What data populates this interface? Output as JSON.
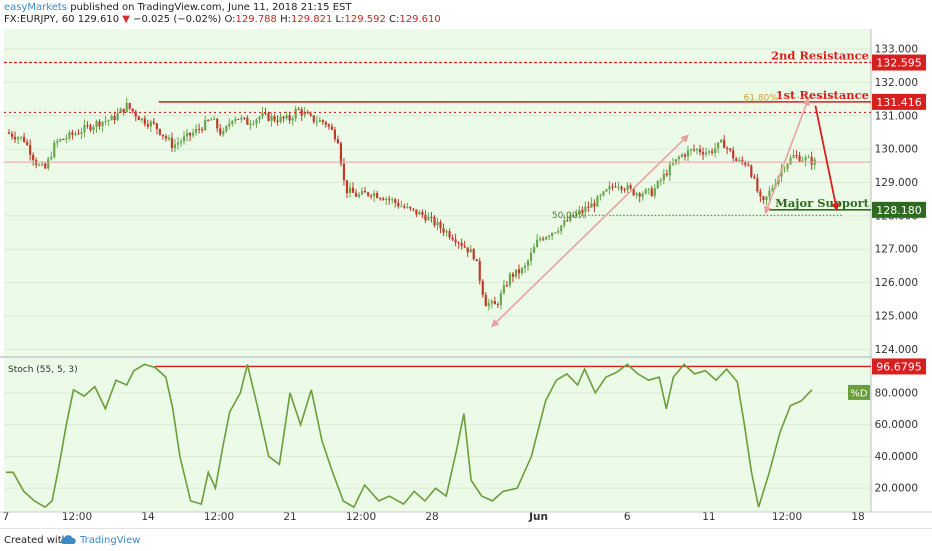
{
  "header": {
    "publisher": "easyMarkets",
    "published_text": "published on TradingView.com, June 11, 2018 21:15 EST",
    "symbol": "FX:EURJPY, 60",
    "last": "129.610",
    "arrow": "▼",
    "change": "−0.025 (−0.02%)",
    "open_label": "O:",
    "open": "129.788",
    "high_label": "H:",
    "high": "129.821",
    "low_label": "L:",
    "low": "129.592",
    "close_label": "C:",
    "close": "129.610"
  },
  "footer": {
    "created_with": "Created with",
    "brand": "TradingView"
  },
  "colors": {
    "panel_bg": "#ecfbe8",
    "bull": "#6aa64e",
    "bear": "#c0392b",
    "resistance": "#d81f1f",
    "support": "#2e6b1e",
    "arrow_pink": "#e9a0a0",
    "stoch": "#6a9e3a",
    "fib_61": "#c8a030",
    "fib_50": "#4a7a32"
  },
  "chart_data": [
    {
      "type": "candlestick",
      "title": "FX:EURJPY, 60",
      "ylim": [
        123.8,
        133.6
      ],
      "x_tick_labels": [
        "7",
        "12:00",
        "14",
        "12:00",
        "21",
        "12:00",
        "28",
        "Jun",
        "6",
        "11",
        "12:00",
        "18"
      ],
      "y_tick_labels": [
        "124.000",
        "125.000",
        "126.000",
        "127.000",
        "128.000",
        "129.000",
        "130.000",
        "131.000",
        "132.000",
        "133.000"
      ],
      "y_ticks": [
        124,
        125,
        126,
        127,
        128,
        129,
        130,
        131,
        132,
        133
      ],
      "price_path": [
        [
          0,
          130.5
        ],
        [
          0.05,
          130.3
        ],
        [
          0.09,
          129.5
        ],
        [
          0.11,
          129.4
        ],
        [
          0.14,
          130.2
        ],
        [
          0.2,
          130.5
        ],
        [
          0.26,
          130.8
        ],
        [
          0.3,
          130.9
        ],
        [
          0.34,
          131.3
        ],
        [
          0.38,
          130.9
        ],
        [
          0.42,
          130.7
        ],
        [
          0.47,
          130.1
        ],
        [
          0.53,
          130.5
        ],
        [
          0.58,
          130.9
        ],
        [
          0.61,
          130.4
        ],
        [
          0.64,
          131.0
        ],
        [
          0.68,
          130.8
        ],
        [
          0.72,
          131.0
        ],
        [
          0.76,
          130.9
        ],
        [
          0.8,
          130.9
        ],
        [
          0.82,
          131.2
        ],
        [
          0.86,
          130.9
        ],
        [
          0.9,
          130.8
        ],
        [
          0.935,
          130.3
        ],
        [
          0.955,
          128.8
        ],
        [
          0.99,
          128.6
        ],
        [
          1.03,
          128.7
        ],
        [
          1.08,
          128.5
        ],
        [
          1.13,
          128.2
        ],
        [
          1.18,
          128.0
        ],
        [
          1.23,
          127.6
        ],
        [
          1.27,
          127.3
        ],
        [
          1.32,
          126.8
        ],
        [
          1.35,
          125.4
        ],
        [
          1.38,
          125.3
        ],
        [
          1.42,
          126.2
        ],
        [
          1.46,
          126.4
        ],
        [
          1.5,
          127.3
        ],
        [
          1.55,
          127.6
        ],
        [
          1.6,
          128.0
        ],
        [
          1.66,
          128.4
        ],
        [
          1.72,
          129.0
        ],
        [
          1.77,
          128.7
        ],
        [
          1.82,
          128.7
        ],
        [
          1.86,
          129.3
        ],
        [
          1.9,
          129.8
        ],
        [
          1.94,
          130.0
        ],
        [
          1.98,
          129.9
        ],
        [
          2.02,
          130.2
        ],
        [
          2.06,
          129.6
        ],
        [
          2.09,
          129.6
        ],
        [
          2.13,
          128.3
        ],
        [
          2.16,
          128.9
        ],
        [
          2.19,
          129.5
        ],
        [
          2.22,
          129.8
        ],
        [
          2.25,
          129.7
        ],
        [
          2.28,
          129.6
        ]
      ],
      "horizontal_lines": [
        {
          "label": "2nd Resistance",
          "price": "132.595",
          "value": 132.595,
          "style": "dashed"
        },
        {
          "label": "1st Resistance",
          "price": "131.416",
          "value": 131.416,
          "style": "solid"
        },
        {
          "label": "",
          "price": "",
          "value": 131.1,
          "style": "dotted"
        },
        {
          "label": "Major Support",
          "price": "128.180",
          "value": 128.18,
          "style": "solid"
        }
      ],
      "fibonacci": [
        {
          "label": "61.80%",
          "value": 131.55,
          "x_range": [
            2.18,
            2.36
          ]
        },
        {
          "label": "50.00%",
          "value": 128.02,
          "x_range": [
            1.64,
            2.36
          ]
        }
      ],
      "current_price_line": 129.61,
      "arrows": [
        {
          "from": [
            1.37,
            124.7
          ],
          "to": [
            1.92,
            130.4
          ],
          "style": "double"
        },
        {
          "from": [
            2.14,
            128.1
          ],
          "to": [
            2.26,
            131.5
          ],
          "style": "double"
        },
        {
          "from": [
            2.28,
            131.3
          ],
          "to": [
            2.34,
            128.2
          ],
          "style": "single"
        }
      ]
    },
    {
      "type": "line",
      "title": "Stoch (55, 5, 3)",
      "series": [
        {
          "name": "%D",
          "last": "80.0000"
        }
      ],
      "ylim": [
        5,
        102
      ],
      "y_tick_labels": [
        "20.0000",
        "40.0000",
        "60.0000",
        "80.0000"
      ],
      "y_ticks": [
        20,
        40,
        60,
        80
      ],
      "level_label": "96.6795",
      "level": 96.6795,
      "values": [
        [
          0,
          30
        ],
        [
          0.02,
          30
        ],
        [
          0.05,
          18
        ],
        [
          0.08,
          12
        ],
        [
          0.11,
          8
        ],
        [
          0.13,
          12
        ],
        [
          0.15,
          35
        ],
        [
          0.17,
          60
        ],
        [
          0.19,
          82
        ],
        [
          0.22,
          78
        ],
        [
          0.25,
          84
        ],
        [
          0.28,
          70
        ],
        [
          0.31,
          88
        ],
        [
          0.34,
          85
        ],
        [
          0.36,
          94
        ],
        [
          0.39,
          98
        ],
        [
          0.42,
          96
        ],
        [
          0.45,
          90
        ],
        [
          0.47,
          70
        ],
        [
          0.49,
          40
        ],
        [
          0.52,
          12
        ],
        [
          0.55,
          10
        ],
        [
          0.57,
          30
        ],
        [
          0.59,
          20
        ],
        [
          0.61,
          45
        ],
        [
          0.63,
          68
        ],
        [
          0.66,
          80
        ],
        [
          0.68,
          98
        ],
        [
          0.71,
          70
        ],
        [
          0.74,
          40
        ],
        [
          0.77,
          35
        ],
        [
          0.8,
          80
        ],
        [
          0.83,
          60
        ],
        [
          0.86,
          82
        ],
        [
          0.89,
          50
        ],
        [
          0.92,
          30
        ],
        [
          0.95,
          12
        ],
        [
          0.98,
          8
        ],
        [
          1.01,
          22
        ],
        [
          1.05,
          12
        ],
        [
          1.08,
          15
        ],
        [
          1.12,
          10
        ],
        [
          1.15,
          18
        ],
        [
          1.18,
          12
        ],
        [
          1.21,
          20
        ],
        [
          1.24,
          15
        ],
        [
          1.27,
          45
        ],
        [
          1.29,
          67
        ],
        [
          1.31,
          25
        ],
        [
          1.34,
          15
        ],
        [
          1.37,
          12
        ],
        [
          1.4,
          18
        ],
        [
          1.44,
          20
        ],
        [
          1.48,
          40
        ],
        [
          1.52,
          75
        ],
        [
          1.55,
          88
        ],
        [
          1.58,
          92
        ],
        [
          1.61,
          85
        ],
        [
          1.63,
          95
        ],
        [
          1.66,
          80
        ],
        [
          1.69,
          90
        ],
        [
          1.72,
          93
        ],
        [
          1.75,
          98
        ],
        [
          1.78,
          92
        ],
        [
          1.81,
          88
        ],
        [
          1.84,
          90
        ],
        [
          1.86,
          70
        ],
        [
          1.88,
          90
        ],
        [
          1.91,
          98
        ],
        [
          1.94,
          92
        ],
        [
          1.97,
          94
        ],
        [
          2.0,
          88
        ],
        [
          2.03,
          95
        ],
        [
          2.06,
          87
        ],
        [
          2.08,
          60
        ],
        [
          2.1,
          30
        ],
        [
          2.12,
          8
        ],
        [
          2.15,
          30
        ],
        [
          2.18,
          55
        ],
        [
          2.21,
          72
        ],
        [
          2.24,
          75
        ],
        [
          2.27,
          82
        ]
      ]
    }
  ]
}
